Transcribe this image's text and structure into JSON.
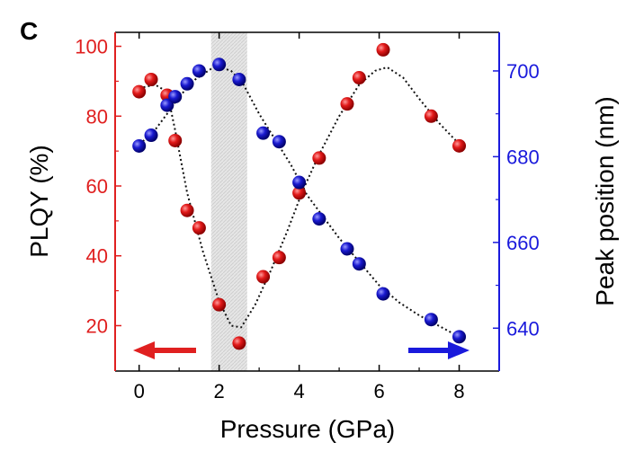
{
  "chart_data": {
    "type": "scatter",
    "panel_label": "C",
    "xlabel": "Pressure (GPa)",
    "ylabel_left": "PLQY (%)",
    "ylabel_right": "Peak position (nm)",
    "x_ticks": [
      "0",
      "2",
      "4",
      "6",
      "8"
    ],
    "yleft_ticks": [
      "20",
      "40",
      "60",
      "80",
      "100"
    ],
    "yright_ticks": [
      "640",
      "660",
      "680",
      "700"
    ],
    "xlim": [
      -0.6,
      9.0
    ],
    "ylim_left": [
      7,
      104
    ],
    "ylim_right": [
      630,
      709
    ],
    "shaded_region_x": [
      1.8,
      2.7
    ],
    "grid": false,
    "colors": {
      "left_axis": "#e02020",
      "right_axis": "#1a1adc",
      "series_PLQY": "#e21a1a",
      "series_peak": "#1a1ad0"
    },
    "series": [
      {
        "axis": "left",
        "color": "#e21a1a",
        "points": [
          [
            0.0,
            87
          ],
          [
            0.3,
            90.5
          ],
          [
            0.7,
            86
          ],
          [
            0.9,
            73
          ],
          [
            1.2,
            53
          ],
          [
            1.5,
            48
          ],
          [
            2.0,
            26
          ],
          [
            2.5,
            15
          ],
          [
            3.1,
            34
          ],
          [
            3.5,
            39.5
          ],
          [
            4.0,
            58
          ],
          [
            4.5,
            68
          ],
          [
            5.2,
            83.5
          ],
          [
            5.5,
            91
          ],
          [
            6.1,
            99
          ],
          [
            7.3,
            80
          ],
          [
            8.0,
            71.5
          ]
        ],
        "fit_curve": [
          [
            0.0,
            88
          ],
          [
            0.4,
            89
          ],
          [
            0.7,
            87
          ],
          [
            0.9,
            76
          ],
          [
            1.2,
            58
          ],
          [
            1.6,
            41
          ],
          [
            2.0,
            27
          ],
          [
            2.3,
            20
          ],
          [
            2.55,
            19.5
          ],
          [
            2.9,
            26
          ],
          [
            3.3,
            36
          ],
          [
            3.7,
            47
          ],
          [
            4.1,
            59
          ],
          [
            4.5,
            69
          ],
          [
            5.0,
            80
          ],
          [
            5.5,
            89
          ],
          [
            5.9,
            93
          ],
          [
            6.2,
            94
          ],
          [
            6.6,
            91
          ],
          [
            7.0,
            85
          ],
          [
            7.5,
            78
          ],
          [
            8.0,
            72
          ]
        ]
      },
      {
        "axis": "right",
        "color": "#1a1ad0",
        "points": [
          [
            0.0,
            682.5
          ],
          [
            0.3,
            685
          ],
          [
            0.7,
            692
          ],
          [
            0.9,
            694
          ],
          [
            1.2,
            697
          ],
          [
            1.5,
            700
          ],
          [
            2.0,
            701.5
          ],
          [
            2.5,
            698
          ],
          [
            3.1,
            685.5
          ],
          [
            3.5,
            683.5
          ],
          [
            4.0,
            674
          ],
          [
            4.5,
            665.5
          ],
          [
            5.2,
            658.5
          ],
          [
            5.5,
            655
          ],
          [
            6.1,
            648
          ],
          [
            7.3,
            642
          ],
          [
            8.0,
            638
          ]
        ],
        "fit_curve": [
          [
            0.0,
            683
          ],
          [
            0.3,
            685
          ],
          [
            0.7,
            690
          ],
          [
            1.0,
            694
          ],
          [
            1.4,
            698
          ],
          [
            1.8,
            700.5
          ],
          [
            2.0,
            701
          ],
          [
            2.3,
            700
          ],
          [
            2.6,
            697
          ],
          [
            3.0,
            690
          ],
          [
            3.4,
            684
          ],
          [
            3.8,
            678
          ],
          [
            4.2,
            671
          ],
          [
            4.6,
            666
          ],
          [
            5.0,
            661
          ],
          [
            5.5,
            655.5
          ],
          [
            6.0,
            650
          ],
          [
            6.5,
            646
          ],
          [
            7.0,
            643
          ],
          [
            7.5,
            640.5
          ],
          [
            8.0,
            638
          ]
        ]
      }
    ],
    "annotations": [
      {
        "type": "arrow",
        "direction": "left",
        "color": "#e21a1a",
        "meaning": "left axis"
      },
      {
        "type": "arrow",
        "direction": "right",
        "color": "#1a1ad0",
        "meaning": "right axis"
      }
    ]
  }
}
